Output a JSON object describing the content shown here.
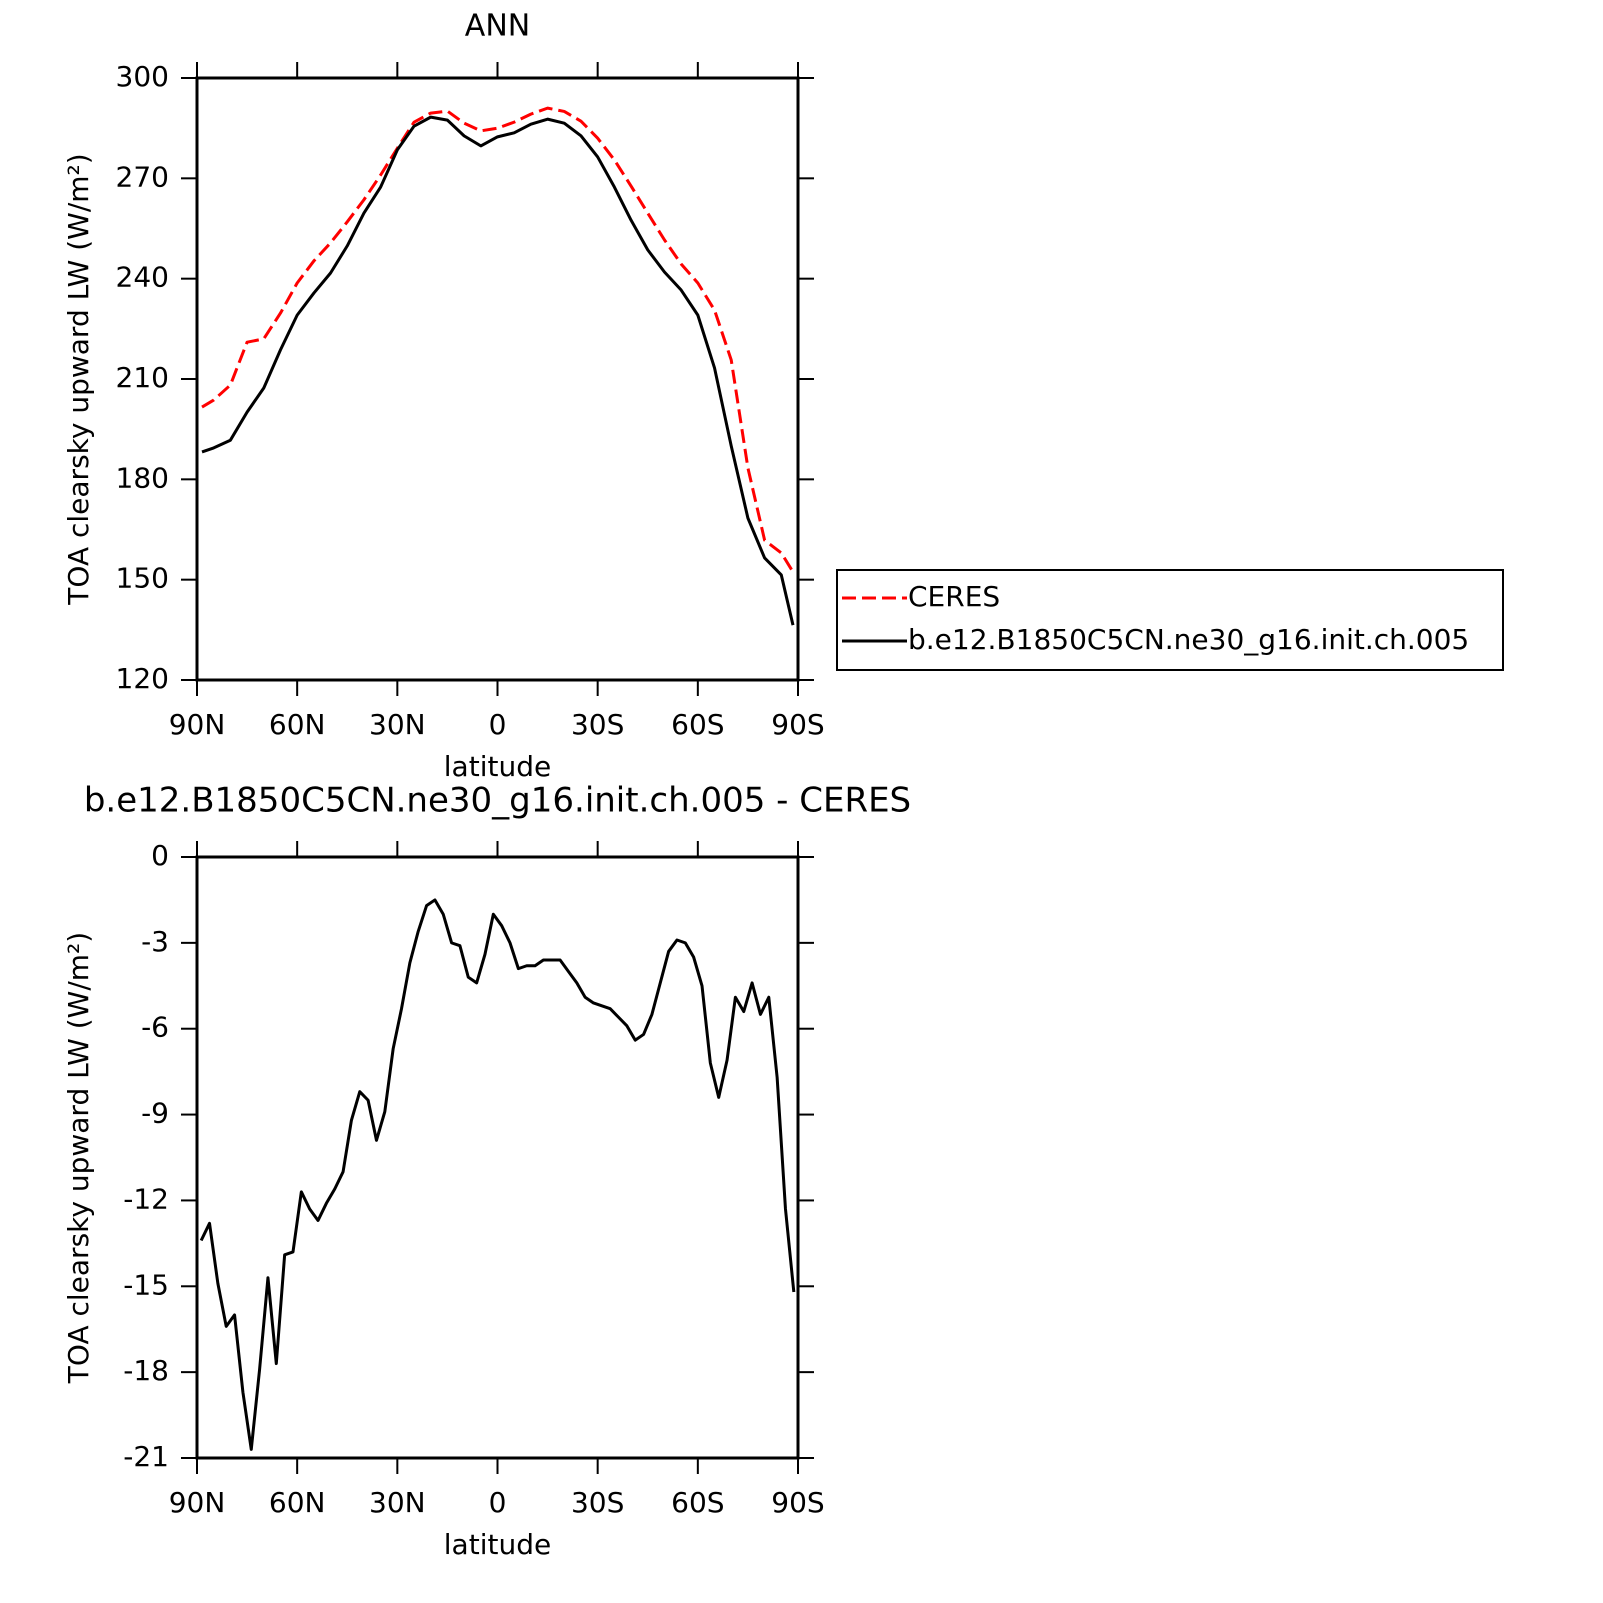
{
  "chart_data": [
    {
      "type": "line",
      "title": "ANN",
      "xlabel": "latitude",
      "ylabel": "TOA clearsky upward LW (W/m²)",
      "x": [
        88.5,
        85,
        80,
        75,
        70,
        65,
        60,
        55,
        50,
        45,
        40,
        35,
        30,
        25,
        20,
        15,
        10,
        5,
        0,
        -5,
        -10,
        -15,
        -20,
        -25,
        -30,
        -35,
        -40,
        -45,
        -50,
        -55,
        -60,
        -65,
        -70,
        -75,
        -80,
        -85,
        -88.5
      ],
      "series": [
        {
          "name": "CERES",
          "color": "#ff0000",
          "linestyle": "dashed",
          "values": [
            201.6,
            203.7,
            208.2,
            221,
            222,
            229.7,
            238.7,
            245.3,
            250.7,
            257,
            263.6,
            271,
            279,
            286.8,
            289.5,
            290.1,
            286.5,
            284.2,
            285,
            286.8,
            289.2,
            291,
            290,
            287.1,
            282,
            275.5,
            267.7,
            259.6,
            251.6,
            244.4,
            238.7,
            230.6,
            215.7,
            183.4,
            161.8,
            158,
            152.3
          ]
        },
        {
          "name": "b.e12.B1850C5CN.ne30_g16.init.ch.005",
          "color": "#000000",
          "linestyle": "solid",
          "values": [
            188.2,
            189.4,
            191.7,
            200.1,
            207.3,
            218.7,
            229.1,
            235.7,
            241.7,
            249.8,
            259.6,
            267.4,
            278.5,
            285.6,
            288.3,
            287.4,
            282.7,
            279.7,
            282.4,
            283.6,
            286.2,
            287.7,
            286.5,
            282.7,
            276.4,
            267.4,
            257.5,
            248.6,
            242,
            236.6,
            229.1,
            213.3,
            190,
            168.4,
            156.5,
            151.4,
            136.4
          ]
        }
      ],
      "xlim": [
        90,
        -90
      ],
      "xticks": [
        {
          "value": 90,
          "label": "90N"
        },
        {
          "value": 60,
          "label": "60N"
        },
        {
          "value": 30,
          "label": "30N"
        },
        0,
        {
          "value": -30,
          "label": "30S"
        },
        {
          "value": -60,
          "label": "60S"
        },
        {
          "value": -90,
          "label": "90S"
        }
      ],
      "ylim": [
        120,
        300
      ],
      "yticks": [
        120,
        150,
        180,
        210,
        240,
        270,
        300
      ],
      "legend": "right"
    },
    {
      "type": "line",
      "title": "b.e12.B1850C5CN.ne30_g16.init.ch.005 - CERES",
      "xlabel": "latitude",
      "ylabel": "TOA clearsky upward LW (W/m²)",
      "x": [
        88.75,
        86.25,
        83.75,
        81.25,
        78.75,
        76.25,
        73.75,
        71.25,
        68.75,
        66.25,
        63.75,
        61.25,
        58.75,
        56.25,
        53.75,
        51.25,
        48.75,
        46.25,
        43.75,
        41.25,
        38.75,
        36.25,
        33.75,
        31.25,
        28.75,
        26.25,
        23.75,
        21.25,
        18.75,
        16.25,
        13.75,
        11.25,
        8.75,
        6.25,
        3.75,
        1.25,
        -1.25,
        -3.75,
        -6.25,
        -8.75,
        -11.25,
        -13.75,
        -16.25,
        -18.75,
        -21.25,
        -23.75,
        -26.25,
        -28.75,
        -31.25,
        -33.75,
        -36.25,
        -38.75,
        -41.25,
        -43.75,
        -46.25,
        -48.75,
        -51.25,
        -53.75,
        -56.25,
        -58.75,
        -61.25,
        -63.75,
        -66.25,
        -68.75,
        -71.25,
        -73.75,
        -76.25,
        -78.75,
        -81.25,
        -83.75,
        -86.25,
        -88.75
      ],
      "series": [
        {
          "color": "#000000",
          "linestyle": "solid",
          "values": [
            -13.4,
            -12.8,
            -14.9,
            -16.4,
            -16.0,
            -18.7,
            -20.7,
            -17.9,
            -14.7,
            -17.7,
            -13.9,
            -13.8,
            -11.7,
            -12.3,
            -12.7,
            -12.1,
            -11.6,
            -11.0,
            -9.2,
            -8.2,
            -8.5,
            -9.9,
            -8.9,
            -6.7,
            -5.3,
            -3.7,
            -2.6,
            -1.7,
            -1.5,
            -2.0,
            -3.0,
            -3.1,
            -4.2,
            -4.4,
            -3.4,
            -2.0,
            -2.4,
            -3.0,
            -3.9,
            -3.8,
            -3.8,
            -3.6,
            -3.6,
            -3.6,
            -4.0,
            -4.4,
            -4.9,
            -5.1,
            -5.2,
            -5.3,
            -5.6,
            -5.9,
            -6.4,
            -6.2,
            -5.5,
            -4.4,
            -3.3,
            -2.9,
            -3.0,
            -3.5,
            -4.5,
            -7.2,
            -8.4,
            -7.1,
            -4.9,
            -5.4,
            -4.4,
            -5.5,
            -4.9,
            -7.7,
            -12.3,
            -15.2
          ]
        }
      ],
      "xlim": [
        90,
        -90
      ],
      "xticks": [
        {
          "value": 90,
          "label": "90N"
        },
        {
          "value": 60,
          "label": "60N"
        },
        {
          "value": 30,
          "label": "30N"
        },
        0,
        {
          "value": -30,
          "label": "30S"
        },
        {
          "value": -60,
          "label": "60S"
        },
        {
          "value": -90,
          "label": "90S"
        }
      ],
      "ylim": [
        -21,
        0
      ],
      "yticks": [
        -21,
        -18,
        -15,
        -12,
        -9,
        -6,
        -3,
        0
      ]
    }
  ]
}
